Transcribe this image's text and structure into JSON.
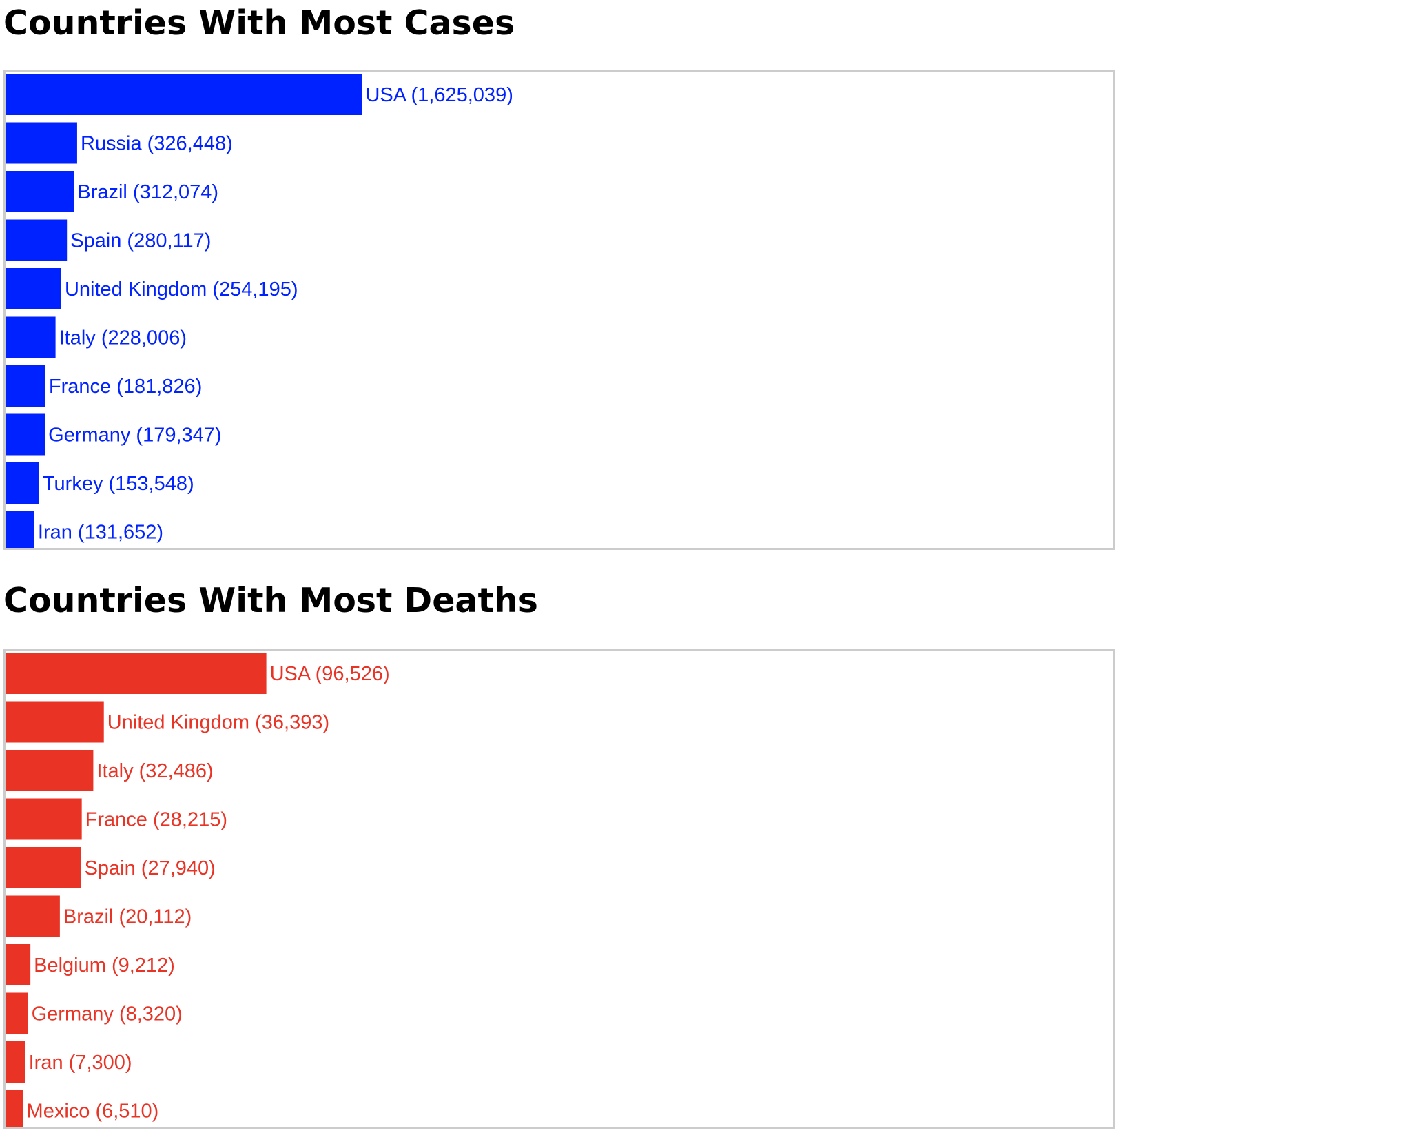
{
  "chart_data": [
    {
      "type": "bar",
      "orientation": "horizontal",
      "title": "Countries With Most Cases",
      "color": "#0022ff",
      "xlim": [
        0,
        5050000
      ],
      "categories": [
        "USA",
        "Russia",
        "Brazil",
        "Spain",
        "United Kingdom",
        "Italy",
        "France",
        "Germany",
        "Turkey",
        "Iran"
      ],
      "values": [
        1625039,
        326448,
        312074,
        280117,
        254195,
        228006,
        181826,
        179347,
        153548,
        131652
      ],
      "labels": [
        "USA (1,625,039)",
        "Russia (326,448)",
        "Brazil (312,074)",
        "Spain (280,117)",
        "United Kingdom (254,195)",
        "Italy (228,006)",
        "France (181,826)",
        "Germany (179,347)",
        "Turkey (153,548)",
        "Iran (131,652)"
      ]
    },
    {
      "type": "bar",
      "orientation": "horizontal",
      "title": "Countries With Most Deaths",
      "color": "#e83325",
      "xlim": [
        0,
        410000
      ],
      "categories": [
        "USA",
        "United Kingdom",
        "Italy",
        "France",
        "Spain",
        "Brazil",
        "Belgium",
        "Germany",
        "Iran",
        "Mexico"
      ],
      "values": [
        96526,
        36393,
        32486,
        28215,
        27940,
        20112,
        9212,
        8320,
        7300,
        6510
      ],
      "labels": [
        "USA (96,526)",
        "United Kingdom (36,393)",
        "Italy (32,486)",
        "France (28,215)",
        "Spain (27,940)",
        "Brazil (20,112)",
        "Belgium (9,212)",
        "Germany (8,320)",
        "Iran (7,300)",
        "Mexico (6,510)"
      ]
    }
  ]
}
